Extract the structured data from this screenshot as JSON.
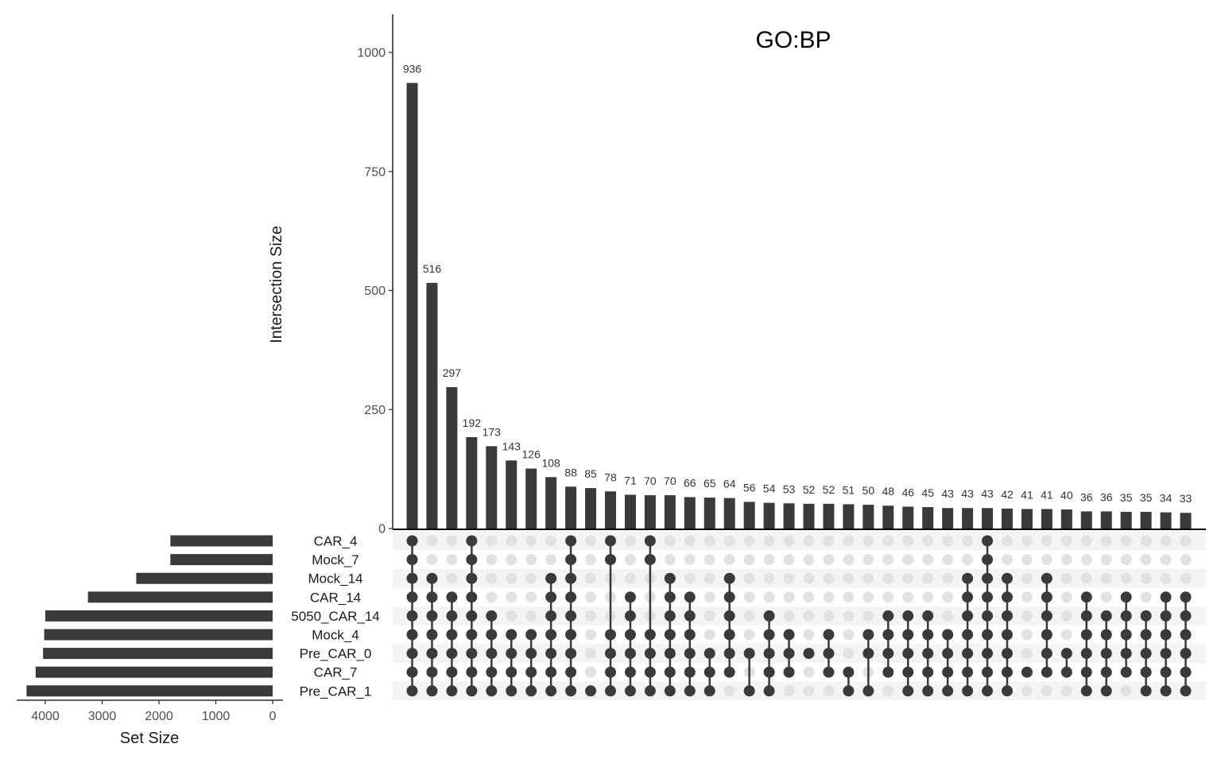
{
  "chart_data": {
    "type": "upset",
    "title": "GO:BP",
    "ylabel": "Intersection Size",
    "set_size_label": "Set Size",
    "ylim": [
      0,
      1080
    ],
    "yticks": [
      0,
      250,
      500,
      750,
      1000
    ],
    "set_size_xlim": [
      0,
      4500
    ],
    "set_size_ticks": [
      4000,
      3000,
      2000,
      1000,
      0
    ],
    "sets": [
      "CAR_4",
      "Mock_7",
      "Mock_14",
      "CAR_14",
      "5050_CAR_14",
      "Mock_4",
      "Pre_CAR_0",
      "CAR_7",
      "Pre_CAR_1"
    ],
    "set_sizes": [
      1800,
      1800,
      2400,
      3250,
      4000,
      4020,
      4040,
      4170,
      4330
    ],
    "values": [
      936,
      516,
      297,
      192,
      173,
      143,
      126,
      108,
      88,
      85,
      78,
      71,
      70,
      70,
      66,
      65,
      64,
      56,
      54,
      53,
      52,
      52,
      51,
      50,
      48,
      46,
      45,
      43,
      43,
      43,
      42,
      41,
      41,
      40,
      36,
      36,
      35,
      35,
      34,
      33
    ],
    "memberships": [
      [
        "CAR_4",
        "Mock_7",
        "Mock_14",
        "CAR_14",
        "5050_CAR_14",
        "Mock_4",
        "Pre_CAR_0",
        "CAR_7",
        "Pre_CAR_1"
      ],
      [
        "Mock_14",
        "CAR_14",
        "5050_CAR_14",
        "Mock_4",
        "Pre_CAR_0",
        "CAR_7",
        "Pre_CAR_1"
      ],
      [
        "CAR_14",
        "5050_CAR_14",
        "Mock_4",
        "Pre_CAR_0",
        "CAR_7",
        "Pre_CAR_1"
      ],
      [
        "CAR_4",
        "Mock_7",
        "Mock_14",
        "CAR_14",
        "5050_CAR_14",
        "Mock_4",
        "Pre_CAR_0",
        "CAR_7",
        "Pre_CAR_1"
      ],
      [
        "5050_CAR_14",
        "Mock_4",
        "Pre_CAR_0",
        "CAR_7",
        "Pre_CAR_1"
      ],
      [
        "Mock_4",
        "Pre_CAR_0",
        "CAR_7",
        "Pre_CAR_1"
      ],
      [
        "Mock_4",
        "Pre_CAR_0",
        "CAR_7",
        "Pre_CAR_1"
      ],
      [
        "Mock_14",
        "CAR_14",
        "5050_CAR_14",
        "Mock_4",
        "Pre_CAR_0",
        "CAR_7",
        "Pre_CAR_1"
      ],
      [
        "CAR_4",
        "Mock_7",
        "Mock_14",
        "CAR_14",
        "5050_CAR_14",
        "Mock_4",
        "Pre_CAR_0",
        "CAR_7",
        "Pre_CAR_1"
      ],
      [
        "Pre_CAR_1"
      ],
      [
        "CAR_4",
        "Mock_7",
        "Mock_4",
        "Pre_CAR_0",
        "CAR_7",
        "Pre_CAR_1"
      ],
      [
        "CAR_14",
        "5050_CAR_14",
        "Mock_4",
        "Pre_CAR_0",
        "CAR_7",
        "Pre_CAR_1"
      ],
      [
        "CAR_4",
        "Mock_7",
        "Mock_4",
        "Pre_CAR_0",
        "CAR_7",
        "Pre_CAR_1"
      ],
      [
        "Mock_14",
        "CAR_14",
        "5050_CAR_14",
        "Mock_4",
        "Pre_CAR_0",
        "CAR_7",
        "Pre_CAR_1"
      ],
      [
        "CAR_14",
        "5050_CAR_14",
        "Mock_4",
        "Pre_CAR_0",
        "CAR_7",
        "Pre_CAR_1"
      ],
      [
        "Pre_CAR_0",
        "CAR_7",
        "Pre_CAR_1"
      ],
      [
        "Mock_14",
        "CAR_14",
        "5050_CAR_14",
        "Mock_4",
        "Pre_CAR_0",
        "CAR_7"
      ],
      [
        "Pre_CAR_0",
        "Pre_CAR_1"
      ],
      [
        "5050_CAR_14",
        "Mock_4",
        "Pre_CAR_0",
        "CAR_7",
        "Pre_CAR_1"
      ],
      [
        "Mock_4",
        "Pre_CAR_0",
        "CAR_7"
      ],
      [
        "Pre_CAR_0"
      ],
      [
        "Mock_4",
        "Pre_CAR_0",
        "CAR_7"
      ],
      [
        "CAR_7",
        "Pre_CAR_1"
      ],
      [
        "Mock_4",
        "Pre_CAR_0",
        "Pre_CAR_1"
      ],
      [
        "5050_CAR_14",
        "Mock_4",
        "Pre_CAR_0",
        "CAR_7"
      ],
      [
        "5050_CAR_14",
        "Mock_4",
        "Pre_CAR_0",
        "CAR_7",
        "Pre_CAR_1"
      ],
      [
        "5050_CAR_14",
        "Mock_4",
        "Pre_CAR_0",
        "CAR_7",
        "Pre_CAR_1"
      ],
      [
        "Mock_4",
        "Pre_CAR_0",
        "CAR_7",
        "Pre_CAR_1"
      ],
      [
        "Mock_14",
        "CAR_14",
        "5050_CAR_14",
        "Mock_4",
        "Pre_CAR_0",
        "CAR_7",
        "Pre_CAR_1"
      ],
      [
        "CAR_4",
        "Mock_7",
        "Mock_14",
        "CAR_14",
        "5050_CAR_14",
        "Mock_4",
        "Pre_CAR_0",
        "CAR_7",
        "Pre_CAR_1"
      ],
      [
        "Mock_14",
        "CAR_14",
        "5050_CAR_14",
        "Mock_4",
        "Pre_CAR_0",
        "CAR_7",
        "Pre_CAR_1"
      ],
      [
        "CAR_7"
      ],
      [
        "Mock_14",
        "CAR_14",
        "5050_CAR_14",
        "Mock_4",
        "Pre_CAR_0",
        "CAR_7"
      ],
      [
        "Pre_CAR_0",
        "CAR_7"
      ],
      [
        "CAR_14",
        "5050_CAR_14",
        "Mock_4",
        "Pre_CAR_0",
        "CAR_7",
        "Pre_CAR_1"
      ],
      [
        "5050_CAR_14",
        "Mock_4",
        "Pre_CAR_0",
        "CAR_7",
        "Pre_CAR_1"
      ],
      [
        "CAR_14",
        "5050_CAR_14",
        "Mock_4",
        "Pre_CAR_0",
        "CAR_7"
      ],
      [
        "5050_CAR_14",
        "Mock_4",
        "Pre_CAR_0",
        "CAR_7",
        "Pre_CAR_1"
      ],
      [
        "CAR_14",
        "5050_CAR_14",
        "Mock_4",
        "Pre_CAR_0",
        "CAR_7",
        "Pre_CAR_1"
      ],
      [
        "CAR_14",
        "5050_CAR_14",
        "Mock_4",
        "Pre_CAR_0",
        "CAR_7",
        "Pre_CAR_1"
      ]
    ]
  }
}
